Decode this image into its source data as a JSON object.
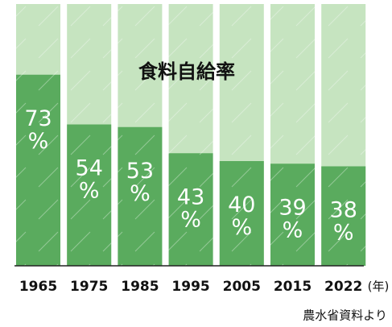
{
  "chart_data": {
    "type": "bar",
    "title": "食料自給率",
    "categories": [
      "1965",
      "1975",
      "1985",
      "1995",
      "2005",
      "2015",
      "2022"
    ],
    "values": [
      73,
      54,
      53,
      43,
      40,
      39,
      38
    ],
    "value_labels": [
      "73%",
      "54%",
      "53%",
      "43%",
      "40%",
      "39%",
      "38%"
    ],
    "x_label": "(年)",
    "source": "農水省資料より",
    "color": "#5aab5e",
    "background_color": "#c6e4c0",
    "ylim": [
      0,
      100
    ]
  }
}
